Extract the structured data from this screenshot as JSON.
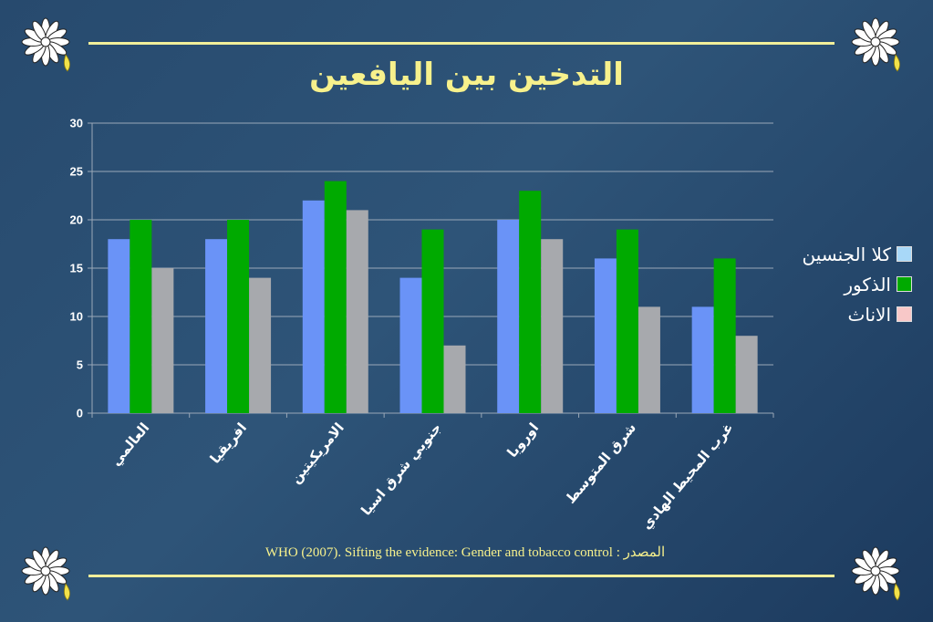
{
  "title": "التدخين بين اليافعين",
  "source_note": "WHO (2007). Sifting the evidence: Gender and tobacco control : المصدر",
  "icons": {
    "flower_top_left": "daisy-icon",
    "flower_top_right": "daisy-icon",
    "flower_bottom_left": "daisy-icon",
    "flower_bottom_right": "daisy-icon"
  },
  "colors": {
    "title": "#f7f18c",
    "rule": "#f2ef9a",
    "axis_text": "#ffffff",
    "grid": "#9aa8b8"
  },
  "chart_data": {
    "type": "bar",
    "categories": [
      "العالمي",
      "افريقيا",
      "الامريكيتين",
      "جنوبي شرق اسيا",
      "اوروبا",
      "شرق المتوسط",
      "غرب المحيط الهادي"
    ],
    "series": [
      {
        "name": "كلا الجنسين",
        "color": "#6a93f7",
        "values": [
          18,
          18,
          22,
          14,
          20,
          16,
          11
        ]
      },
      {
        "name": "الذكور",
        "color": "#00aa00",
        "values": [
          20,
          20,
          24,
          19,
          23,
          19,
          16
        ]
      },
      {
        "name": "الاناث",
        "color": "#a7a9ad",
        "values": [
          15,
          14,
          21,
          7,
          18,
          11,
          8
        ]
      }
    ],
    "legend_swatch_colors": [
      "#a8d8f8",
      "#00aa00",
      "#f8c8c8"
    ],
    "yticks": [
      0,
      5,
      10,
      15,
      20,
      25,
      30
    ],
    "ylim": [
      0,
      30
    ],
    "grid": true,
    "legend_position": "right"
  }
}
